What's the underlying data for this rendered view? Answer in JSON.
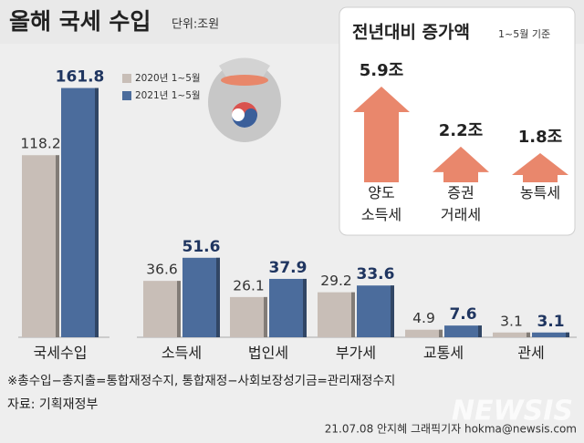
{
  "chart_data": [
    {
      "type": "bar",
      "title": "올해 국세 수입",
      "unit": "단위:조원",
      "categories": [
        "국세수입",
        "소득세",
        "법인세",
        "부가세",
        "교통세",
        "관세"
      ],
      "series": [
        {
          "name": "2020년 1~5월",
          "color": "#c8beb7",
          "values": [
            118.2,
            36.6,
            26.1,
            29.2,
            4.9,
            3.1
          ]
        },
        {
          "name": "2021년 1~5월",
          "color": "#4b6c9c",
          "values": [
            161.8,
            51.6,
            37.9,
            33.6,
            7.6,
            3.1
          ]
        }
      ]
    },
    {
      "type": "arrow",
      "title": "전년대비 증가액",
      "subtitle": "1~5월 기준",
      "categories": [
        "양도\n소득세",
        "증권\n거래세",
        "농특세"
      ],
      "values": [
        5.9,
        2.2,
        1.8
      ],
      "value_labels": [
        "5.9조",
        "2.2조",
        "1.8조"
      ],
      "color": "#e9876c"
    }
  ],
  "footnote": "※총수입−총지출=통합재정수지,  통합재정−사회보장성기금=관리재정수지",
  "source": "자료: 기획재정부",
  "credit": "21.07.08 안지혜 그래픽기자 hokma@newsis.com",
  "watermark": "NEWSIS"
}
